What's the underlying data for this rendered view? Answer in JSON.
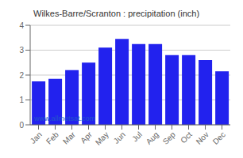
{
  "chart_data": {
    "type": "bar",
    "title": "Wilkes-Barre/Scranton : precipitation (inch)",
    "categories": [
      "Jan",
      "Feb",
      "Mar",
      "Apr",
      "May",
      "Jun",
      "Jul",
      "Aug",
      "Sep",
      "Oct",
      "Nov",
      "Dec"
    ],
    "values": [
      1.75,
      1.85,
      2.2,
      2.5,
      3.1,
      3.45,
      3.25,
      3.25,
      2.8,
      2.8,
      2.6,
      2.15
    ],
    "color": "#2222ee",
    "ylim": [
      0,
      4
    ],
    "yticks": [
      0,
      1,
      2,
      3,
      4
    ],
    "grid": true,
    "annotations": [
      "www.allmetsat.com"
    ]
  }
}
